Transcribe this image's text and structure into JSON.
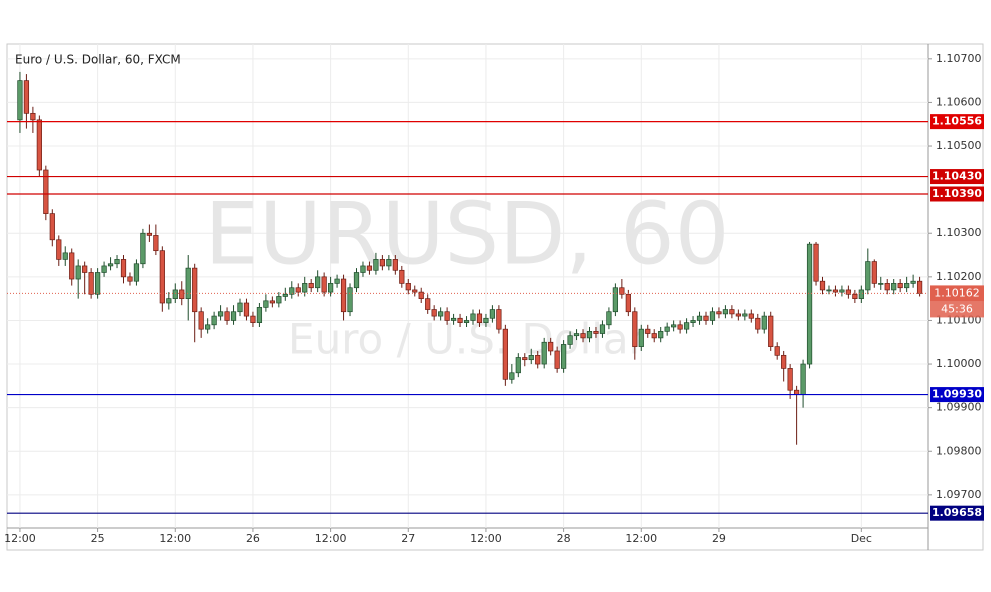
{
  "chart_data": {
    "type": "candlestick",
    "title": "Euro / U.S. Dollar, 60, FXCM",
    "watermark": "EURUSD, 60",
    "watermark_subtitle": "Euro / U.S. Dollar",
    "up_color": "#5b9a68",
    "down_color": "#d75442",
    "open": [
      1.1056,
      1.1065,
      1.10575,
      1.1056,
      1.10445,
      1.10345,
      1.10285,
      1.1024,
      1.10255,
      1.10195,
      1.10225,
      1.1021,
      1.1016,
      1.1021,
      1.10225,
      1.1023,
      1.1024,
      1.102,
      1.1019,
      1.1023,
      1.103,
      1.10295,
      1.1026,
      1.1014,
      1.1015,
      1.1017,
      1.1015,
      1.1022,
      1.1012,
      1.1008,
      1.1009,
      1.1011,
      1.1012,
      1.101,
      1.1012,
      1.1014,
      1.1011,
      1.10095,
      1.1013,
      1.10145,
      1.1014,
      1.10155,
      1.1016,
      1.10175,
      1.10165,
      1.10185,
      1.10175,
      1.102,
      1.10165,
      1.10185,
      1.10195,
      1.1012,
      1.10175,
      1.1021,
      1.10225,
      1.10215,
      1.1024,
      1.10225,
      1.1024,
      1.10215,
      1.10185,
      1.1017,
      1.10165,
      1.1015,
      1.10125,
      1.1011,
      1.1012,
      1.101,
      1.10105,
      1.10095,
      1.101,
      1.10115,
      1.10095,
      1.10105,
      1.10125,
      1.1008,
      1.09965,
      1.0998,
      1.10015,
      1.1001,
      1.1002,
      1.1,
      1.1005,
      1.1003,
      1.0999,
      1.10045,
      1.10065,
      1.1007,
      1.1006,
      1.10075,
      1.1007,
      1.1009,
      1.1012,
      1.10175,
      1.1016,
      1.1012,
      1.1004,
      1.1008,
      1.1007,
      1.1006,
      1.10075,
      1.10085,
      1.1009,
      1.1008,
      1.10095,
      1.101,
      1.1011,
      1.101,
      1.1012,
      1.10115,
      1.10125,
      1.10115,
      1.1011,
      1.10115,
      1.10105,
      1.1008,
      1.1011,
      1.1004,
      1.1002,
      1.0999,
      1.0994,
      1.0993,
      1.1,
      1.10275,
      1.1019,
      1.1017,
      1.1017,
      1.10165,
      1.1017,
      1.1016,
      1.1015,
      1.1017,
      1.10235,
      1.10185,
      1.10185,
      1.1017,
      1.10185,
      1.10175,
      1.10185,
      1.1019
    ],
    "high": [
      1.1067,
      1.10665,
      1.1059,
      1.1057,
      1.10455,
      1.10355,
      1.10295,
      1.1027,
      1.10265,
      1.1024,
      1.10235,
      1.1022,
      1.1022,
      1.10235,
      1.10245,
      1.1025,
      1.1025,
      1.1021,
      1.1024,
      1.1031,
      1.1032,
      1.1032,
      1.1027,
      1.10165,
      1.10185,
      1.1019,
      1.1025,
      1.1023,
      1.1013,
      1.10105,
      1.1012,
      1.10135,
      1.1013,
      1.10135,
      1.1015,
      1.1015,
      1.1012,
      1.1014,
      1.1016,
      1.10155,
      1.10165,
      1.10175,
      1.1019,
      1.10185,
      1.102,
      1.10195,
      1.10215,
      1.1021,
      1.102,
      1.10205,
      1.10205,
      1.10185,
      1.1022,
      1.10235,
      1.10235,
      1.10255,
      1.1025,
      1.1025,
      1.1025,
      1.10225,
      1.10195,
      1.1018,
      1.10175,
      1.1016,
      1.10135,
      1.1013,
      1.1013,
      1.10115,
      1.10115,
      1.1011,
      1.10125,
      1.10125,
      1.10115,
      1.10135,
      1.10135,
      1.1009,
      1.1,
      1.10025,
      1.10025,
      1.10035,
      1.1003,
      1.1006,
      1.1006,
      1.1004,
      1.10055,
      1.10075,
      1.1008,
      1.1008,
      1.10085,
      1.10085,
      1.101,
      1.1013,
      1.10185,
      1.10195,
      1.1017,
      1.1013,
      1.1009,
      1.1009,
      1.1008,
      1.10085,
      1.10095,
      1.101,
      1.101,
      1.10105,
      1.1011,
      1.1012,
      1.1012,
      1.1013,
      1.1013,
      1.10135,
      1.10135,
      1.10125,
      1.10125,
      1.10125,
      1.10115,
      1.1012,
      1.1012,
      1.1005,
      1.1003,
      1.1,
      1.0995,
      1.1001,
      1.1028,
      1.1028,
      1.102,
      1.1018,
      1.1018,
      1.1018,
      1.1018,
      1.1017,
      1.1018,
      1.10265,
      1.1024,
      1.102,
      1.10195,
      1.10195,
      1.10195,
      1.102,
      1.10205,
      1.102
    ],
    "low": [
      1.1053,
      1.1054,
      1.1053,
      1.1043,
      1.1033,
      1.1027,
      1.10225,
      1.10225,
      1.1018,
      1.1015,
      1.1016,
      1.1015,
      1.1015,
      1.102,
      1.10215,
      1.1022,
      1.10185,
      1.1018,
      1.1018,
      1.1022,
      1.1028,
      1.1025,
      1.1012,
      1.10125,
      1.1014,
      1.10135,
      1.101,
      1.1005,
      1.1006,
      1.1007,
      1.1008,
      1.101,
      1.1009,
      1.1009,
      1.1011,
      1.101,
      1.10085,
      1.10085,
      1.1012,
      1.1013,
      1.1013,
      1.10145,
      1.1015,
      1.10155,
      1.10155,
      1.10165,
      1.10165,
      1.10155,
      1.10155,
      1.10175,
      1.101,
      1.1011,
      1.10165,
      1.102,
      1.10205,
      1.10205,
      1.10215,
      1.10215,
      1.10205,
      1.10175,
      1.1016,
      1.10155,
      1.1014,
      1.10115,
      1.101,
      1.101,
      1.1009,
      1.1009,
      1.10085,
      1.10085,
      1.1009,
      1.10085,
      1.10085,
      1.10095,
      1.1007,
      1.0995,
      1.09955,
      1.0997,
      1.09995,
      1.1,
      1.0999,
      1.0999,
      1.1002,
      1.0998,
      1.0998,
      1.10035,
      1.10055,
      1.1005,
      1.1005,
      1.1006,
      1.1006,
      1.1008,
      1.1011,
      1.1015,
      1.1011,
      1.1001,
      1.1003,
      1.1006,
      1.1005,
      1.1005,
      1.10065,
      1.10075,
      1.1007,
      1.1007,
      1.10085,
      1.1009,
      1.1009,
      1.1009,
      1.10105,
      1.10105,
      1.10105,
      1.101,
      1.101,
      1.10095,
      1.1007,
      1.1007,
      1.1003,
      1.1001,
      1.0996,
      1.0992,
      1.09815,
      1.099,
      1.0999,
      1.1018,
      1.1016,
      1.1016,
      1.10155,
      1.10155,
      1.1015,
      1.1014,
      1.1014,
      1.1016,
      1.10175,
      1.1017,
      1.1016,
      1.1016,
      1.10165,
      1.10165,
      1.10175,
      1.10155
    ],
    "close": [
      1.1065,
      1.10575,
      1.1056,
      1.10445,
      1.10345,
      1.10285,
      1.1024,
      1.10255,
      1.10195,
      1.10225,
      1.1021,
      1.1016,
      1.1021,
      1.10225,
      1.1023,
      1.1024,
      1.102,
      1.1019,
      1.1023,
      1.103,
      1.10295,
      1.1026,
      1.1014,
      1.1015,
      1.1017,
      1.1015,
      1.1022,
      1.1012,
      1.1008,
      1.1009,
      1.1011,
      1.1012,
      1.101,
      1.1012,
      1.1014,
      1.1011,
      1.10095,
      1.1013,
      1.10145,
      1.1014,
      1.10155,
      1.1016,
      1.10175,
      1.10165,
      1.10185,
      1.10175,
      1.102,
      1.10165,
      1.10185,
      1.10195,
      1.1012,
      1.10175,
      1.1021,
      1.10225,
      1.10215,
      1.1024,
      1.10225,
      1.1024,
      1.10215,
      1.10185,
      1.1017,
      1.10165,
      1.1015,
      1.10125,
      1.1011,
      1.1012,
      1.101,
      1.10105,
      1.10095,
      1.101,
      1.10115,
      1.10095,
      1.10105,
      1.10125,
      1.1008,
      1.09965,
      1.0998,
      1.10015,
      1.1001,
      1.1002,
      1.1,
      1.1005,
      1.1003,
      1.0999,
      1.10045,
      1.10065,
      1.1007,
      1.1006,
      1.10075,
      1.1007,
      1.1009,
      1.1012,
      1.10175,
      1.1016,
      1.1012,
      1.1004,
      1.1008,
      1.1007,
      1.1006,
      1.10075,
      1.10085,
      1.1009,
      1.1008,
      1.10095,
      1.101,
      1.1011,
      1.101,
      1.1012,
      1.10115,
      1.10125,
      1.10115,
      1.1011,
      1.10115,
      1.10105,
      1.1008,
      1.1011,
      1.1004,
      1.1002,
      1.0999,
      1.0994,
      1.0993,
      1.1,
      1.10275,
      1.1019,
      1.1017,
      1.1017,
      1.10165,
      1.1017,
      1.1016,
      1.1015,
      1.1017,
      1.10235,
      1.10185,
      1.10185,
      1.1017,
      1.10185,
      1.10175,
      1.10185,
      1.1019,
      1.10162
    ],
    "xlim": [
      -2,
      140.3
    ],
    "xticks": [
      {
        "value": 0,
        "label": "12:00"
      },
      {
        "value": 12,
        "label": "25"
      },
      {
        "value": 24,
        "label": "12:00"
      },
      {
        "value": 36,
        "label": "26"
      },
      {
        "value": 48,
        "label": "12:00"
      },
      {
        "value": 60,
        "label": "27"
      },
      {
        "value": 72,
        "label": "12:00"
      },
      {
        "value": 84,
        "label": "28"
      },
      {
        "value": 96,
        "label": "12:00"
      },
      {
        "value": 108,
        "label": "29"
      },
      {
        "value": 130,
        "label": "Dec"
      }
    ],
    "ylim": [
      1.09624,
      1.10734
    ],
    "yticks": [
      {
        "value": 1.107,
        "label": "1.10700"
      },
      {
        "value": 1.106,
        "label": "1.10600"
      },
      {
        "value": 1.105,
        "label": "1.10500"
      },
      {
        "value": 1.103,
        "label": "1.10300"
      },
      {
        "value": 1.102,
        "label": "1.10200"
      },
      {
        "value": 1.101,
        "label": "1.10100"
      },
      {
        "value": 1.1,
        "label": "1.10000"
      },
      {
        "value": 1.099,
        "label": "1.09900"
      },
      {
        "value": 1.098,
        "label": "1.09800"
      },
      {
        "value": 1.097,
        "label": "1.09700"
      }
    ],
    "grid": true,
    "levels": [
      {
        "value": 1.10556,
        "label": "1.10556",
        "color": "#e00000"
      },
      {
        "value": 1.1043,
        "label": "1.10430",
        "color": "#d00000"
      },
      {
        "value": 1.1039,
        "label": "1.10390",
        "color": "#d00000"
      },
      {
        "value": 1.0993,
        "label": "1.09930",
        "color": "#0000c8"
      },
      {
        "value": 1.09658,
        "label": "1.09658",
        "color": "#000080"
      }
    ],
    "last_price": {
      "value": 1.10162,
      "label": "1.10162",
      "color": "#e0604e"
    },
    "countdown": "45:36"
  }
}
